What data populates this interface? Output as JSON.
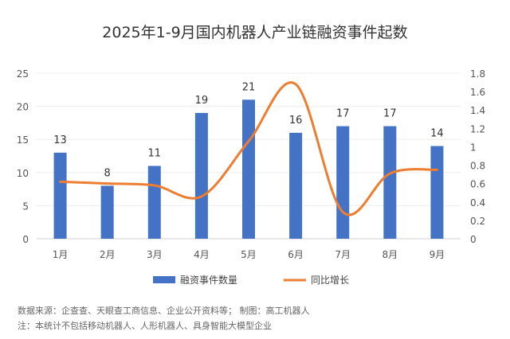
{
  "chart_data": {
    "type": "bar+line",
    "title": "2025年1-9月国内机器人产业链融资事件起数",
    "categories": [
      "1月",
      "2月",
      "3月",
      "4月",
      "5月",
      "6月",
      "7月",
      "8月",
      "9月"
    ],
    "series": [
      {
        "name": "融资事件数量",
        "type": "bar",
        "axis": "left",
        "color": "#4472C4",
        "values": [
          13,
          8,
          11,
          19,
          21,
          16,
          17,
          17,
          14
        ]
      },
      {
        "name": "同比增长",
        "type": "line",
        "axis": "right",
        "smooth": true,
        "color": "#ED7D31",
        "values": [
          0.62,
          0.6,
          0.58,
          0.46,
          1.06,
          1.68,
          0.29,
          0.71,
          0.75
        ]
      }
    ],
    "left_axis": {
      "range": [
        0,
        25
      ],
      "ticks": [
        "0",
        "5",
        "10",
        "15",
        "20",
        "25"
      ]
    },
    "right_axis": {
      "range": [
        0,
        1.8
      ],
      "ticks": [
        "0",
        "0.2",
        "0.4",
        "0.6",
        "0.8",
        "1",
        "1.2",
        "1.4",
        "1.6",
        "1.8"
      ]
    },
    "grid": true,
    "legend_position": "bottom"
  },
  "footer": {
    "source": "数据来源：企查查、天眼查工商信息、企业公开资料等；  制图：高工机器人",
    "note": "注：本统计不包括移动机器人、人形机器人、具身智能大模型企业"
  }
}
